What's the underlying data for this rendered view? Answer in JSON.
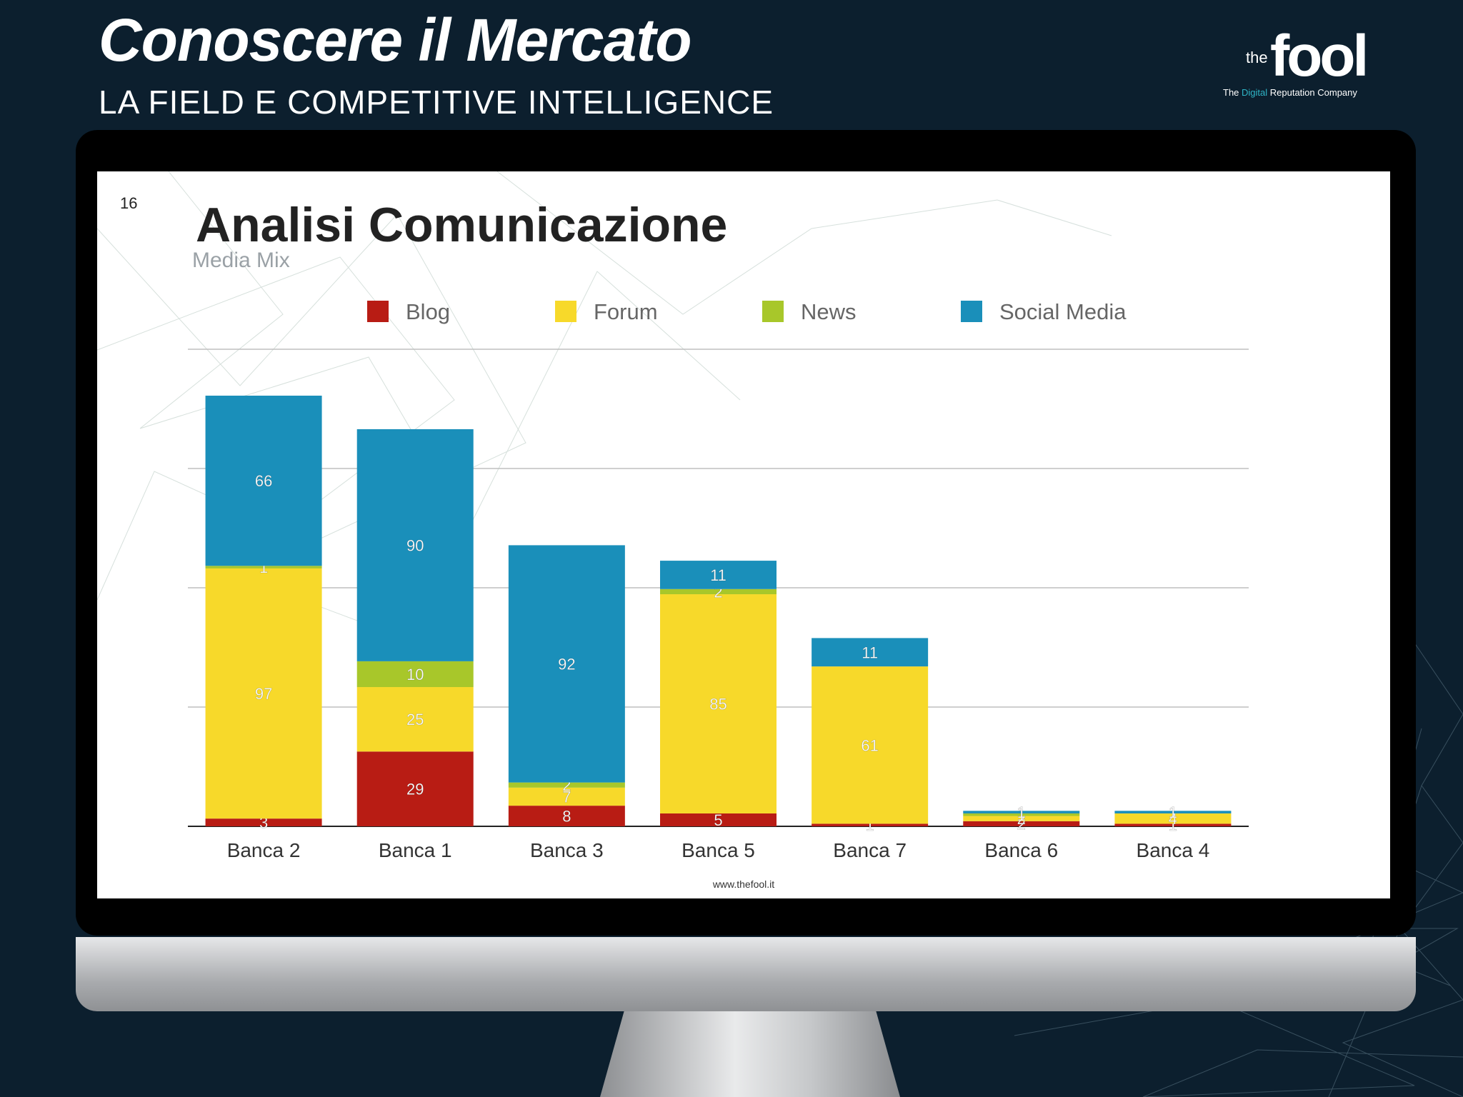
{
  "header": {
    "title": "Conoscere il Mercato",
    "subtitle": "LA FIELD E COMPETITIVE INTELLIGENCE"
  },
  "logo": {
    "the": "the",
    "fool": "fool",
    "tagline_pre": "The ",
    "tagline_accent": "Digital",
    "tagline_post": " Reputation Company"
  },
  "slide": {
    "page_number": "16",
    "title": "Analisi Comunicazione",
    "subtitle": "Media Mix",
    "footer_url": "www.thefool.it"
  },
  "colors": {
    "background": "#0c1f2e",
    "Blog": "#b81c14",
    "Forum": "#f7d92a",
    "News": "#a8c72a",
    "Social Media": "#1a8fba"
  },
  "chart_data": {
    "type": "bar",
    "stacked": true,
    "title": "",
    "xlabel": "",
    "ylabel": "",
    "ylim": [
      0,
      185
    ],
    "grid": true,
    "legend_position": "top",
    "categories": [
      "Banca 2",
      "Banca 1",
      "Banca 3",
      "Banca 5",
      "Banca 7",
      "Banca 6",
      "Banca 4"
    ],
    "series": [
      {
        "name": "Blog",
        "values": [
          3,
          29,
          8,
          5,
          1,
          2,
          1
        ]
      },
      {
        "name": "Forum",
        "values": [
          97,
          25,
          7,
          85,
          61,
          2,
          4
        ]
      },
      {
        "name": "News",
        "values": [
          1,
          10,
          2,
          2,
          0,
          1,
          0
        ]
      },
      {
        "name": "Social Media",
        "values": [
          66,
          90,
          92,
          11,
          11,
          1,
          1
        ]
      }
    ]
  }
}
